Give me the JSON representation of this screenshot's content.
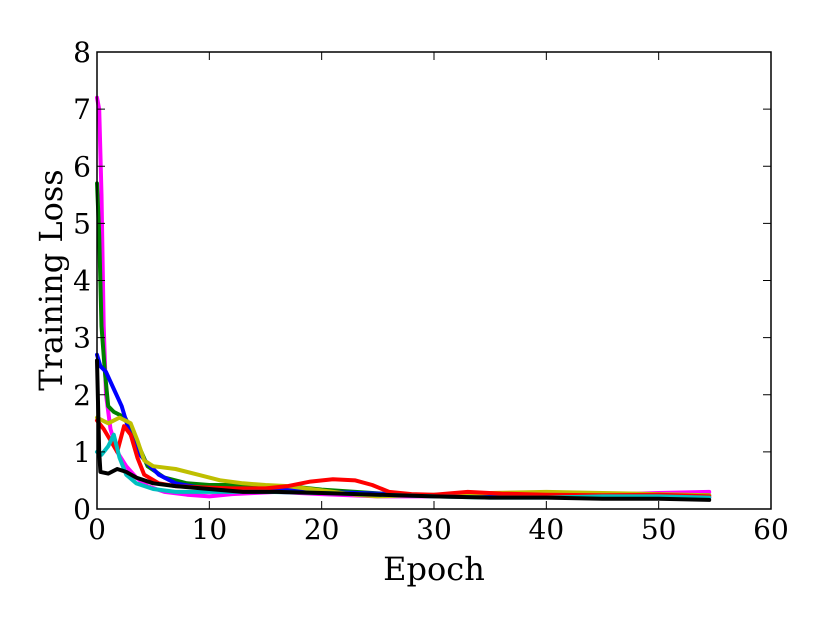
{
  "chart_data": {
    "type": "line",
    "title": "",
    "xlabel": "Epoch",
    "ylabel": "Training Loss",
    "xlim": [
      0,
      60
    ],
    "ylim": [
      0,
      8
    ],
    "xticks": [
      0,
      10,
      20,
      30,
      40,
      50,
      60
    ],
    "yticks": [
      0,
      1,
      2,
      3,
      4,
      5,
      6,
      7,
      8
    ],
    "grid": false,
    "legend": "none",
    "series": [
      {
        "color": "#ff00ff",
        "values": [
          [
            0,
            7.2
          ],
          [
            0.2,
            7.0
          ],
          [
            0.4,
            5.5
          ],
          [
            0.6,
            3.2
          ],
          [
            0.8,
            2.0
          ],
          [
            1.2,
            1.4
          ],
          [
            1.8,
            1.0
          ],
          [
            2.6,
            0.75
          ],
          [
            3.5,
            0.55
          ],
          [
            4.5,
            0.4
          ],
          [
            6,
            0.3
          ],
          [
            8,
            0.25
          ],
          [
            10,
            0.22
          ],
          [
            12,
            0.26
          ],
          [
            14,
            0.28
          ],
          [
            16,
            0.3
          ],
          [
            20,
            0.26
          ],
          [
            25,
            0.22
          ],
          [
            30,
            0.22
          ],
          [
            35,
            0.22
          ],
          [
            40,
            0.24
          ],
          [
            45,
            0.25
          ],
          [
            50,
            0.28
          ],
          [
            54.5,
            0.3
          ]
        ]
      },
      {
        "color": "#008000",
        "values": [
          [
            0,
            5.7
          ],
          [
            0.2,
            4.8
          ],
          [
            0.4,
            3.2
          ],
          [
            0.7,
            2.4
          ],
          [
            1.0,
            1.8
          ],
          [
            1.5,
            1.7
          ],
          [
            2.5,
            1.6
          ],
          [
            3.5,
            1.2
          ],
          [
            4.5,
            0.75
          ],
          [
            6,
            0.55
          ],
          [
            8,
            0.45
          ],
          [
            10,
            0.42
          ],
          [
            12,
            0.42
          ],
          [
            14,
            0.42
          ],
          [
            16,
            0.4
          ],
          [
            18,
            0.38
          ],
          [
            20,
            0.34
          ],
          [
            23,
            0.3
          ],
          [
            26,
            0.26
          ],
          [
            30,
            0.24
          ],
          [
            35,
            0.22
          ],
          [
            40,
            0.22
          ],
          [
            45,
            0.24
          ],
          [
            50,
            0.25
          ],
          [
            54.5,
            0.24
          ]
        ]
      },
      {
        "color": "#0000ff",
        "values": [
          [
            0,
            2.7
          ],
          [
            0.3,
            2.5
          ],
          [
            0.8,
            2.4
          ],
          [
            1.5,
            2.1
          ],
          [
            2.2,
            1.8
          ],
          [
            2.8,
            1.4
          ],
          [
            3.6,
            1.0
          ],
          [
            4.5,
            0.8
          ],
          [
            5.5,
            0.6
          ],
          [
            7,
            0.45
          ],
          [
            9,
            0.38
          ],
          [
            11,
            0.36
          ],
          [
            14,
            0.35
          ],
          [
            17,
            0.33
          ],
          [
            20,
            0.3
          ],
          [
            25,
            0.27
          ],
          [
            30,
            0.24
          ],
          [
            35,
            0.22
          ],
          [
            40,
            0.22
          ],
          [
            45,
            0.22
          ],
          [
            50,
            0.22
          ],
          [
            54.5,
            0.2
          ]
        ]
      },
      {
        "color": "#bfbf00",
        "values": [
          [
            0,
            1.6
          ],
          [
            1,
            1.5
          ],
          [
            2,
            1.6
          ],
          [
            3,
            1.5
          ],
          [
            3.6,
            1.2
          ],
          [
            4.2,
            0.85
          ],
          [
            5,
            0.75
          ],
          [
            7,
            0.7
          ],
          [
            9,
            0.6
          ],
          [
            11,
            0.5
          ],
          [
            13,
            0.45
          ],
          [
            15,
            0.42
          ],
          [
            17,
            0.4
          ],
          [
            19,
            0.35
          ],
          [
            21,
            0.3
          ],
          [
            23,
            0.25
          ],
          [
            25,
            0.22
          ],
          [
            30,
            0.25
          ],
          [
            35,
            0.28
          ],
          [
            40,
            0.3
          ],
          [
            45,
            0.28
          ],
          [
            50,
            0.26
          ],
          [
            54.5,
            0.24
          ]
        ]
      },
      {
        "color": "#ff0000",
        "values": [
          [
            0,
            1.55
          ],
          [
            0.6,
            1.4
          ],
          [
            1.2,
            1.2
          ],
          [
            1.8,
            1.0
          ],
          [
            2.4,
            1.45
          ],
          [
            3.0,
            1.3
          ],
          [
            3.6,
            0.9
          ],
          [
            4.2,
            0.6
          ],
          [
            5.5,
            0.45
          ],
          [
            7,
            0.4
          ],
          [
            9,
            0.38
          ],
          [
            12,
            0.36
          ],
          [
            15,
            0.36
          ],
          [
            17,
            0.4
          ],
          [
            19,
            0.48
          ],
          [
            21,
            0.52
          ],
          [
            23,
            0.5
          ],
          [
            24.5,
            0.42
          ],
          [
            26,
            0.3
          ],
          [
            28,
            0.26
          ],
          [
            30,
            0.25
          ],
          [
            33,
            0.3
          ],
          [
            36,
            0.27
          ],
          [
            40,
            0.25
          ],
          [
            45,
            0.24
          ],
          [
            50,
            0.25
          ],
          [
            54.5,
            0.22
          ]
        ]
      },
      {
        "color": "#00bfbf",
        "values": [
          [
            0,
            1.0
          ],
          [
            0.4,
            0.95
          ],
          [
            1.0,
            1.1
          ],
          [
            1.5,
            1.3
          ],
          [
            2.0,
            0.9
          ],
          [
            2.6,
            0.6
          ],
          [
            3.5,
            0.45
          ],
          [
            5,
            0.35
          ],
          [
            7,
            0.3
          ],
          [
            10,
            0.3
          ],
          [
            15,
            0.3
          ],
          [
            20,
            0.28
          ],
          [
            25,
            0.25
          ],
          [
            30,
            0.22
          ],
          [
            35,
            0.2
          ],
          [
            40,
            0.2
          ],
          [
            45,
            0.22
          ],
          [
            50,
            0.22
          ],
          [
            54.5,
            0.2
          ]
        ]
      },
      {
        "color": "#000000",
        "values": [
          [
            0,
            2.6
          ],
          [
            0.2,
            1.0
          ],
          [
            0.3,
            0.65
          ],
          [
            1.0,
            0.62
          ],
          [
            1.8,
            0.7
          ],
          [
            2.6,
            0.65
          ],
          [
            3.5,
            0.55
          ],
          [
            5,
            0.45
          ],
          [
            7,
            0.4
          ],
          [
            10,
            0.35
          ],
          [
            13,
            0.3
          ],
          [
            16,
            0.3
          ],
          [
            20,
            0.28
          ],
          [
            25,
            0.25
          ],
          [
            30,
            0.22
          ],
          [
            35,
            0.2
          ],
          [
            40,
            0.2
          ],
          [
            45,
            0.18
          ],
          [
            50,
            0.18
          ],
          [
            54.5,
            0.16
          ]
        ]
      }
    ]
  }
}
